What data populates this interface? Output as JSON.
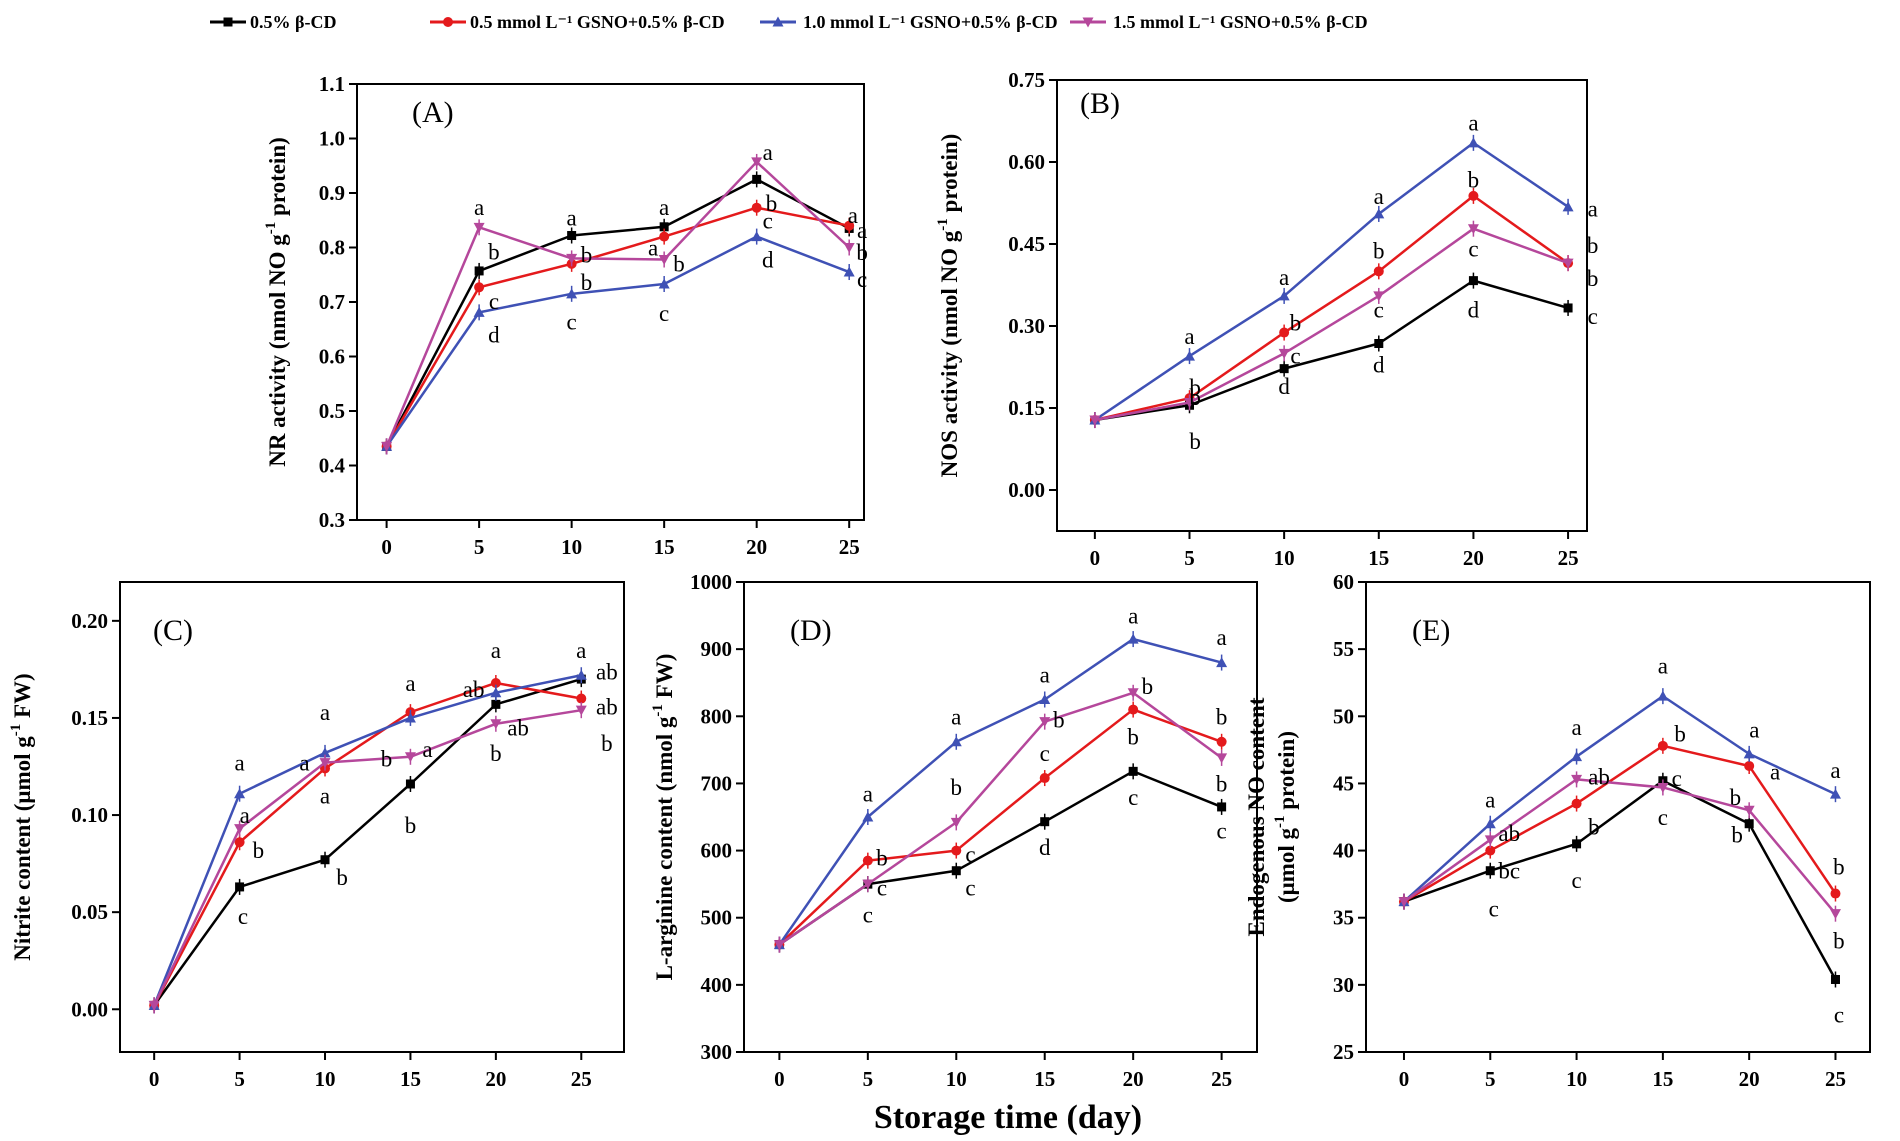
{
  "figure": {
    "x_title": "Storage time (day)"
  },
  "series_meta": [
    {
      "key": "s0",
      "name": "0.5% β-CD",
      "color": "#000000",
      "marker": "square"
    },
    {
      "key": "s1",
      "name": "0.5 mmol L⁻¹ GSNO+0.5% β-CD",
      "color": "#e41a1c",
      "marker": "circle"
    },
    {
      "key": "s2",
      "name": "1.0 mmol L⁻¹ GSNO+0.5% β-CD",
      "color": "#3f51b5",
      "marker": "triangle-up"
    },
    {
      "key": "s3",
      "name": "1.5 mmol L⁻¹ GSNO+0.5% β-CD",
      "color": "#b5479b",
      "marker": "triangle-down"
    }
  ],
  "chart_data": [
    {
      "type": "line",
      "panel_label": "(A)",
      "ylabel_parts": [
        "NR activity (nmol NO g",
        "-1",
        " protein)"
      ],
      "x": [
        0,
        5,
        10,
        15,
        20,
        25
      ],
      "xlim": [
        -1.6,
        25.8
      ],
      "ylim": [
        0.3,
        1.1
      ],
      "yticks": [
        "0.3",
        "0.4",
        "0.5",
        "0.6",
        "0.7",
        "0.8",
        "0.9",
        "1.0",
        "1.1"
      ],
      "xticks": [
        "0",
        "5",
        "10",
        "15",
        "20",
        "25"
      ],
      "series": [
        {
          "name": "0.5% β-CD",
          "values": [
            0.435,
            0.757,
            0.822,
            0.838,
            0.925,
            0.835
          ],
          "letters": [
            "",
            "b",
            "a",
            "a",
            "",
            ""
          ]
        },
        {
          "name": "0.5 mmol L⁻¹ GSNO+0.5% β-CD",
          "values": [
            0.435,
            0.727,
            0.77,
            0.82,
            0.873,
            0.84
          ],
          "letters": [
            "",
            "c",
            "b",
            "a",
            "b",
            "a"
          ]
        },
        {
          "name": "1.0 mmol L⁻¹ GSNO+0.5% β-CD",
          "values": [
            0.435,
            0.681,
            0.715,
            0.733,
            0.82,
            0.755
          ],
          "letters": [
            "",
            "d",
            "c",
            "c",
            "d",
            "c"
          ]
        },
        {
          "name": "1.5 mmol L⁻¹ GSNO+0.5% β-CD",
          "values": [
            0.435,
            0.837,
            0.78,
            0.778,
            0.957,
            0.8
          ],
          "letters": [
            "",
            "a",
            "b",
            "b",
            "a",
            "b"
          ]
        }
      ],
      "annotations": [
        {
          "x": 5,
          "y": 0.874,
          "text": "a"
        },
        {
          "x": 5.8,
          "y": 0.793,
          "text": "b"
        },
        {
          "x": 5.8,
          "y": 0.702,
          "text": "c"
        },
        {
          "x": 5.8,
          "y": 0.64,
          "text": "d"
        },
        {
          "x": 10,
          "y": 0.855,
          "text": "a"
        },
        {
          "x": 10.8,
          "y": 0.787,
          "text": "b"
        },
        {
          "x": 10.8,
          "y": 0.737,
          "text": "b"
        },
        {
          "x": 10,
          "y": 0.664,
          "text": "c"
        },
        {
          "x": 15,
          "y": 0.874,
          "text": "a"
        },
        {
          "x": 14.4,
          "y": 0.8,
          "text": "a"
        },
        {
          "x": 15.8,
          "y": 0.771,
          "text": "b"
        },
        {
          "x": 15,
          "y": 0.68,
          "text": "c"
        },
        {
          "x": 20.6,
          "y": 0.975,
          "text": "a"
        },
        {
          "x": 20.8,
          "y": 0.882,
          "text": "b"
        },
        {
          "x": 20.6,
          "y": 0.85,
          "text": "c"
        },
        {
          "x": 20.6,
          "y": 0.778,
          "text": "d"
        },
        {
          "x": 25.2,
          "y": 0.86,
          "text": "a"
        },
        {
          "x": 25.7,
          "y": 0.832,
          "text": "a"
        },
        {
          "x": 25.7,
          "y": 0.792,
          "text": "b"
        },
        {
          "x": 25.7,
          "y": 0.742,
          "text": "c"
        }
      ]
    },
    {
      "type": "line",
      "panel_label": "(B)",
      "ylabel_parts": [
        "NOS activity (nmol NO g",
        "-1",
        " protein)"
      ],
      "x": [
        0,
        5,
        10,
        15,
        20,
        25
      ],
      "xlim": [
        -2.0,
        26.0
      ],
      "ylim": [
        -0.075,
        0.75
      ],
      "yticks": [
        "0.00",
        "0.15",
        "0.30",
        "0.45",
        "0.60",
        "0.75"
      ],
      "ytick_values": [
        0.0,
        0.15,
        0.3,
        0.45,
        0.6,
        0.75
      ],
      "xticks": [
        "0",
        "5",
        "10",
        "15",
        "20",
        "25"
      ],
      "series": [
        {
          "name": "0.5% β-CD",
          "values": [
            0.128,
            0.155,
            0.222,
            0.268,
            0.383,
            0.333
          ]
        },
        {
          "name": "0.5 mmol L⁻¹ GSNO+0.5% β-CD",
          "values": [
            0.128,
            0.168,
            0.288,
            0.4,
            0.538,
            0.415
          ]
        },
        {
          "name": "1.0 mmol L⁻¹ GSNO+0.5% β-CD",
          "values": [
            0.128,
            0.245,
            0.355,
            0.505,
            0.635,
            0.518
          ]
        },
        {
          "name": "1.5 mmol L⁻¹ GSNO+0.5% β-CD",
          "values": [
            0.128,
            0.16,
            0.25,
            0.355,
            0.478,
            0.415
          ]
        }
      ],
      "annotations": [
        {
          "x": 5,
          "y": 0.282,
          "text": "a"
        },
        {
          "x": 5.3,
          "y": 0.188,
          "text": "b"
        },
        {
          "x": 5.3,
          "y": 0.17,
          "text": "b"
        },
        {
          "x": 5.3,
          "y": 0.09,
          "text": "b"
        },
        {
          "x": 10,
          "y": 0.39,
          "text": "a"
        },
        {
          "x": 10.6,
          "y": 0.306,
          "text": "b"
        },
        {
          "x": 10.6,
          "y": 0.246,
          "text": "c"
        },
        {
          "x": 10,
          "y": 0.19,
          "text": "d"
        },
        {
          "x": 15,
          "y": 0.538,
          "text": "a"
        },
        {
          "x": 15,
          "y": 0.438,
          "text": "b"
        },
        {
          "x": 15,
          "y": 0.33,
          "text": "c"
        },
        {
          "x": 15,
          "y": 0.23,
          "text": "d"
        },
        {
          "x": 20,
          "y": 0.672,
          "text": "a"
        },
        {
          "x": 20,
          "y": 0.568,
          "text": "b"
        },
        {
          "x": 20,
          "y": 0.442,
          "text": "c"
        },
        {
          "x": 20,
          "y": 0.33,
          "text": "d"
        },
        {
          "x": 26.3,
          "y": 0.515,
          "text": "a"
        },
        {
          "x": 26.3,
          "y": 0.448,
          "text": "b"
        },
        {
          "x": 26.3,
          "y": 0.388,
          "text": "b"
        },
        {
          "x": 26.3,
          "y": 0.318,
          "text": "c"
        }
      ]
    },
    {
      "type": "line",
      "panel_label": "(C)",
      "ylabel_parts": [
        "Nitrite content (μmol g",
        "-1",
        " FW)"
      ],
      "x": [
        0,
        5,
        10,
        15,
        20,
        25
      ],
      "xlim": [
        -2.0,
        27.5
      ],
      "ylim": [
        -0.022,
        0.22
      ],
      "yticks": [
        "0.00",
        "0.05",
        "0.10",
        "0.15",
        "0.20"
      ],
      "ytick_values": [
        0.0,
        0.05,
        0.1,
        0.15,
        0.2
      ],
      "xticks": [
        "0",
        "5",
        "10",
        "15",
        "20",
        "25"
      ],
      "series": [
        {
          "name": "0.5% β-CD",
          "values": [
            0.002,
            0.063,
            0.077,
            0.116,
            0.157,
            0.17
          ]
        },
        {
          "name": "0.5 mmol L⁻¹ GSNO+0.5% β-CD",
          "values": [
            0.002,
            0.086,
            0.124,
            0.153,
            0.168,
            0.16
          ]
        },
        {
          "name": "1.0 mmol L⁻¹ GSNO+0.5% β-CD",
          "values": [
            0.002,
            0.111,
            0.132,
            0.15,
            0.163,
            0.172
          ]
        },
        {
          "name": "1.5 mmol L⁻¹ GSNO+0.5% β-CD",
          "values": [
            0.002,
            0.093,
            0.127,
            0.13,
            0.147,
            0.154
          ]
        }
      ],
      "annotations": [
        {
          "x": 5,
          "y": 0.127,
          "text": "a"
        },
        {
          "x": 5.3,
          "y": 0.1,
          "text": "a"
        },
        {
          "x": 6.1,
          "y": 0.082,
          "text": "b"
        },
        {
          "x": 5.2,
          "y": 0.048,
          "text": "c"
        },
        {
          "x": 10,
          "y": 0.153,
          "text": "a"
        },
        {
          "x": 8.8,
          "y": 0.127,
          "text": "a"
        },
        {
          "x": 10,
          "y": 0.11,
          "text": "a"
        },
        {
          "x": 11,
          "y": 0.068,
          "text": "b"
        },
        {
          "x": 15,
          "y": 0.168,
          "text": "a"
        },
        {
          "x": 16,
          "y": 0.134,
          "text": "a"
        },
        {
          "x": 13.6,
          "y": 0.129,
          "text": "b"
        },
        {
          "x": 15,
          "y": 0.095,
          "text": "b"
        },
        {
          "x": 20,
          "y": 0.185,
          "text": "a"
        },
        {
          "x": 18.7,
          "y": 0.165,
          "text": "ab"
        },
        {
          "x": 21.3,
          "y": 0.145,
          "text": "ab"
        },
        {
          "x": 20,
          "y": 0.132,
          "text": "b"
        },
        {
          "x": 25,
          "y": 0.185,
          "text": "a"
        },
        {
          "x": 26.5,
          "y": 0.174,
          "text": "ab"
        },
        {
          "x": 26.5,
          "y": 0.156,
          "text": "ab"
        },
        {
          "x": 26.5,
          "y": 0.137,
          "text": "b"
        }
      ]
    },
    {
      "type": "line",
      "panel_label": "(D)",
      "ylabel_parts": [
        "L-arginine content (nmol g",
        "-1",
        " FW)"
      ],
      "x": [
        0,
        5,
        10,
        15,
        20,
        25
      ],
      "xlim": [
        -2.0,
        27.0
      ],
      "ylim": [
        300,
        1000
      ],
      "yticks": [
        "300",
        "400",
        "500",
        "600",
        "700",
        "800",
        "900",
        "1000"
      ],
      "xticks": [
        "0",
        "5",
        "10",
        "15",
        "20",
        "25"
      ],
      "series": [
        {
          "name": "0.5% β-CD",
          "values": [
            460,
            550,
            570,
            643,
            718,
            665
          ]
        },
        {
          "name": "0.5 mmol L⁻¹ GSNO+0.5% β-CD",
          "values": [
            460,
            585,
            600,
            708,
            810,
            762
          ]
        },
        {
          "name": "1.0 mmol L⁻¹ GSNO+0.5% β-CD",
          "values": [
            460,
            650,
            762,
            825,
            915,
            880
          ]
        },
        {
          "name": "1.5 mmol L⁻¹ GSNO+0.5% β-CD",
          "values": [
            460,
            550,
            642,
            792,
            835,
            738
          ]
        }
      ],
      "annotations": [
        {
          "x": 5,
          "y": 685,
          "text": "a"
        },
        {
          "x": 5.8,
          "y": 590,
          "text": "b"
        },
        {
          "x": 5.8,
          "y": 545,
          "text": "c"
        },
        {
          "x": 5,
          "y": 505,
          "text": "c"
        },
        {
          "x": 10,
          "y": 800,
          "text": "a"
        },
        {
          "x": 10,
          "y": 695,
          "text": "b"
        },
        {
          "x": 10.8,
          "y": 595,
          "text": "c"
        },
        {
          "x": 10.8,
          "y": 545,
          "text": "c"
        },
        {
          "x": 15,
          "y": 862,
          "text": "a"
        },
        {
          "x": 15.8,
          "y": 795,
          "text": "b"
        },
        {
          "x": 15,
          "y": 745,
          "text": "c"
        },
        {
          "x": 15,
          "y": 605,
          "text": "d"
        },
        {
          "x": 20,
          "y": 950,
          "text": "a"
        },
        {
          "x": 20.8,
          "y": 845,
          "text": "b"
        },
        {
          "x": 20,
          "y": 770,
          "text": "b"
        },
        {
          "x": 20,
          "y": 680,
          "text": "c"
        },
        {
          "x": 25,
          "y": 918,
          "text": "a"
        },
        {
          "x": 25,
          "y": 800,
          "text": "b"
        },
        {
          "x": 25,
          "y": 700,
          "text": "b"
        },
        {
          "x": 25,
          "y": 630,
          "text": "c"
        }
      ]
    },
    {
      "type": "line",
      "panel_label": "(E)",
      "ylabel_parts": [
        "Endogenous NO content",
        "(μmol g",
        "-1",
        " protein)"
      ],
      "x": [
        0,
        5,
        10,
        15,
        20,
        25
      ],
      "xlim": [
        -2.2,
        27.0
      ],
      "ylim": [
        25,
        60
      ],
      "yticks": [
        "25",
        "30",
        "35",
        "40",
        "45",
        "50",
        "55",
        "60"
      ],
      "xticks": [
        "0",
        "5",
        "10",
        "15",
        "20",
        "25"
      ],
      "series": [
        {
          "name": "0.5% β-CD",
          "values": [
            36.2,
            38.5,
            40.5,
            45.2,
            42.0,
            30.4
          ]
        },
        {
          "name": "0.5 mmol L⁻¹ GSNO+0.5% β-CD",
          "values": [
            36.2,
            40.0,
            43.5,
            47.8,
            46.3,
            36.8
          ]
        },
        {
          "name": "1.0 mmol L⁻¹ GSNO+0.5% β-CD",
          "values": [
            36.2,
            42.0,
            47.0,
            51.5,
            47.2,
            44.2
          ]
        },
        {
          "name": "1.5 mmol L⁻¹ GSNO+0.5% β-CD",
          "values": [
            36.2,
            40.8,
            45.3,
            44.7,
            43.0,
            35.3
          ]
        }
      ],
      "annotations": [
        {
          "x": 5,
          "y": 43.8,
          "text": "a"
        },
        {
          "x": 6.1,
          "y": 41.3,
          "text": "ab"
        },
        {
          "x": 6.1,
          "y": 38.5,
          "text": "bc"
        },
        {
          "x": 5.2,
          "y": 35.7,
          "text": "c"
        },
        {
          "x": 10,
          "y": 49.2,
          "text": "a"
        },
        {
          "x": 11.3,
          "y": 45.5,
          "text": "ab"
        },
        {
          "x": 11,
          "y": 41.8,
          "text": "b"
        },
        {
          "x": 10,
          "y": 37.8,
          "text": "c"
        },
        {
          "x": 15,
          "y": 53.8,
          "text": "a"
        },
        {
          "x": 16,
          "y": 48.7,
          "text": "b"
        },
        {
          "x": 15.8,
          "y": 45.4,
          "text": "c"
        },
        {
          "x": 15,
          "y": 42.5,
          "text": "c"
        },
        {
          "x": 20.3,
          "y": 49.0,
          "text": "a"
        },
        {
          "x": 21.5,
          "y": 45.9,
          "text": "a"
        },
        {
          "x": 19.3,
          "y": 41.2,
          "text": "b"
        },
        {
          "x": 19.2,
          "y": 44.0,
          "text": "b"
        },
        {
          "x": 25,
          "y": 46.0,
          "text": "a"
        },
        {
          "x": 25.2,
          "y": 38.8,
          "text": "b"
        },
        {
          "x": 25.2,
          "y": 33.3,
          "text": "b"
        },
        {
          "x": 25.2,
          "y": 27.8,
          "text": "c"
        }
      ]
    }
  ]
}
